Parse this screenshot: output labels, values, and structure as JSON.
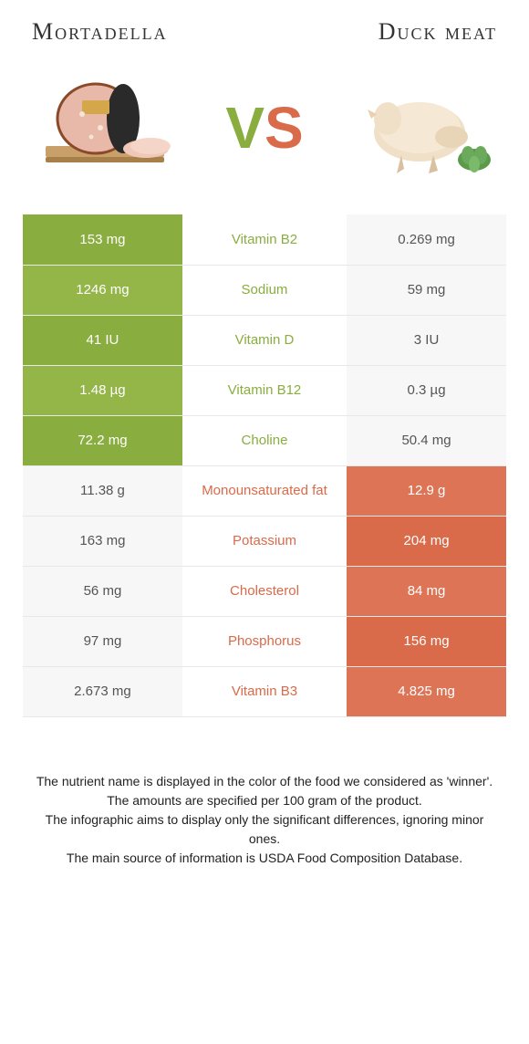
{
  "header": {
    "left_title": "Mortadella",
    "right_title": "Duck meat"
  },
  "vs": {
    "v": "V",
    "s": "S"
  },
  "colors": {
    "left": "#8aad3f",
    "left_alt": "#94b548",
    "right": "#d96a4a",
    "right_alt": "#dd7456",
    "neutral_left": "#f7f7f7",
    "neutral_right": "#f7f7f7",
    "mid_text_left": "#8aad3f",
    "mid_text_right": "#d96a4a"
  },
  "rows": [
    {
      "label": "Vitamin B2",
      "left": "153 mg",
      "right": "0.269 mg",
      "winner": "left"
    },
    {
      "label": "Sodium",
      "left": "1246 mg",
      "right": "59 mg",
      "winner": "left"
    },
    {
      "label": "Vitamin D",
      "left": "41 IU",
      "right": "3 IU",
      "winner": "left"
    },
    {
      "label": "Vitamin B12",
      "left": "1.48 µg",
      "right": "0.3 µg",
      "winner": "left"
    },
    {
      "label": "Choline",
      "left": "72.2 mg",
      "right": "50.4 mg",
      "winner": "left"
    },
    {
      "label": "Monounsaturated fat",
      "left": "11.38 g",
      "right": "12.9 g",
      "winner": "right"
    },
    {
      "label": "Potassium",
      "left": "163 mg",
      "right": "204 mg",
      "winner": "right"
    },
    {
      "label": "Cholesterol",
      "left": "56 mg",
      "right": "84 mg",
      "winner": "right"
    },
    {
      "label": "Phosphorus",
      "left": "97 mg",
      "right": "156 mg",
      "winner": "right"
    },
    {
      "label": "Vitamin B3",
      "left": "2.673 mg",
      "right": "4.825 mg",
      "winner": "right"
    }
  ],
  "footer": {
    "line1": "The nutrient name is displayed in the color of the food we considered as 'winner'.",
    "line2": "The amounts are specified per 100 gram of the product.",
    "line3": "The infographic aims to display only the significant differences, ignoring minor ones.",
    "line4": "The main source of information is USDA Food Composition Database."
  }
}
